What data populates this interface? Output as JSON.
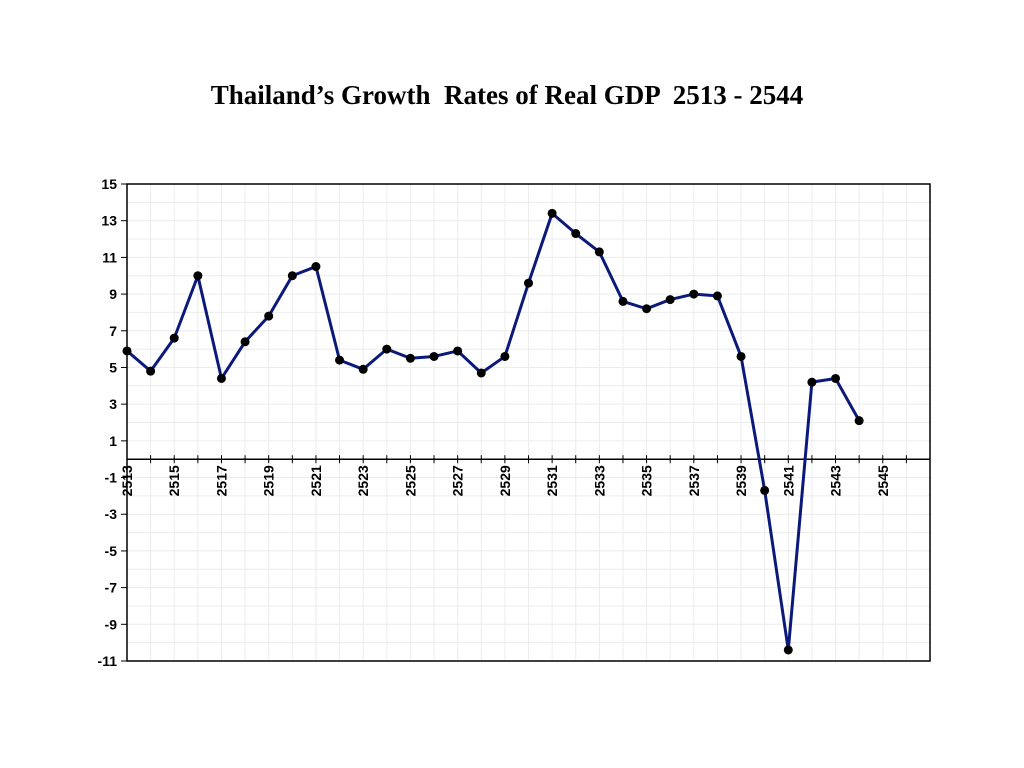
{
  "chart_data": {
    "type": "line",
    "title": "Thailand’s Growth  Rates of Real GDP  2513 - 2544",
    "xlabel": "",
    "ylabel": "",
    "xlim": [
      2513,
      2547
    ],
    "ylim": [
      -11,
      15
    ],
    "y_ticks": [
      15,
      13,
      11,
      9,
      7,
      5,
      3,
      1,
      -1,
      -3,
      -5,
      -7,
      -9,
      -11
    ],
    "x_ticks": [
      2513,
      2515,
      2517,
      2519,
      2521,
      2523,
      2525,
      2527,
      2529,
      2531,
      2533,
      2535,
      2537,
      2539,
      2541,
      2543,
      2545
    ],
    "grid": true,
    "legend": "none",
    "line_color": "#0b1a7a",
    "marker_color": "#000000",
    "series": [
      {
        "x": [
          2513,
          2514,
          2515,
          2516,
          2517,
          2518,
          2519,
          2520,
          2521,
          2522,
          2523,
          2524,
          2525,
          2526,
          2527,
          2528,
          2529,
          2530,
          2531,
          2532,
          2533,
          2534,
          2535,
          2536,
          2537,
          2538,
          2539,
          2540,
          2541,
          2542,
          2543,
          2544
        ],
        "values": [
          5.9,
          4.8,
          6.6,
          10.0,
          4.4,
          6.4,
          7.8,
          10.0,
          10.5,
          5.4,
          4.9,
          6.0,
          5.5,
          5.6,
          5.9,
          4.7,
          5.6,
          9.6,
          13.4,
          12.3,
          11.3,
          8.6,
          8.2,
          8.7,
          9.0,
          8.9,
          5.6,
          -1.7,
          -10.4,
          4.2,
          4.4,
          2.1
        ]
      }
    ]
  }
}
